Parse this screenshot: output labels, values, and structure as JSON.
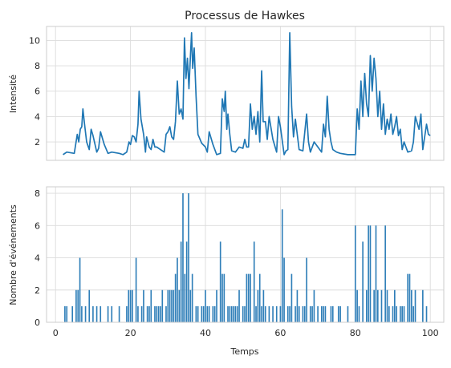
{
  "chart_data": [
    {
      "type": "line",
      "title": "Processus de Hawkes",
      "ylabel": "Intensité",
      "color": "#1f77b4",
      "grid": true,
      "xlim": [
        -2.4,
        103.6
      ],
      "ylim": [
        0.55,
        11.1
      ],
      "yticks": [
        2,
        4,
        6,
        8,
        10
      ],
      "x": [
        2,
        3,
        5,
        5.8,
        6.2,
        6.6,
        7,
        7.3,
        7.7,
        8.3,
        9,
        9.5,
        10,
        11,
        11.5,
        12,
        13,
        14,
        15,
        17,
        18,
        19,
        19.6,
        20,
        20.5,
        21,
        21.5,
        22,
        22.3,
        22.8,
        23.5,
        24,
        24.3,
        25,
        25.5,
        26,
        26.5,
        27,
        28,
        29,
        29.5,
        30,
        30.5,
        31,
        31.5,
        32,
        32.5,
        33,
        33.5,
        34,
        34.4,
        34.8,
        35.2,
        35.6,
        36,
        36.3,
        36.6,
        37,
        37.5,
        38,
        39,
        40,
        40.5,
        41,
        42,
        43,
        44,
        44.5,
        45,
        45.3,
        45.7,
        46,
        46.5,
        47,
        48,
        49,
        50,
        50.5,
        51,
        51.5,
        52,
        52.5,
        53,
        53.5,
        54,
        54.5,
        55,
        55.4,
        56,
        56.5,
        57,
        58,
        59,
        59.5,
        60,
        61,
        61.5,
        62,
        62.5,
        63,
        63.5,
        64,
        64.5,
        65,
        66,
        67,
        67.5,
        68,
        69,
        70,
        71,
        71.5,
        72,
        72.5,
        73,
        73.5,
        74,
        75,
        76,
        78,
        80,
        80.5,
        81,
        81.5,
        82,
        82.5,
        83,
        83.5,
        84,
        84.5,
        85,
        85.5,
        86,
        86.5,
        87,
        87.5,
        88,
        88.5,
        89,
        89.5,
        90,
        90.5,
        91,
        91.5,
        92,
        92.5,
        93,
        94,
        95,
        95.5,
        96,
        97,
        97.5,
        98,
        99,
        99.5,
        100
      ],
      "values": [
        1.0,
        1.2,
        1.1,
        2.6,
        2.0,
        3.0,
        3.2,
        4.6,
        3.5,
        2.0,
        1.4,
        3.0,
        2.5,
        1.2,
        1.5,
        2.8,
        1.8,
        1.1,
        1.2,
        1.1,
        1.0,
        1.2,
        2.0,
        1.8,
        2.5,
        2.4,
        2.0,
        3.4,
        6.0,
        3.8,
        2.6,
        1.2,
        2.4,
        1.6,
        1.4,
        2.2,
        1.6,
        1.6,
        1.4,
        1.2,
        2.6,
        2.8,
        3.2,
        2.4,
        2.2,
        3.6,
        6.8,
        4.2,
        4.6,
        3.8,
        10.2,
        7.0,
        8.6,
        6.2,
        8.8,
        10.6,
        7.8,
        9.4,
        5.6,
        2.6,
        1.9,
        1.6,
        1.2,
        2.8,
        1.8,
        1.0,
        1.1,
        5.4,
        4.4,
        6.0,
        3.0,
        4.2,
        2.6,
        1.3,
        1.2,
        1.6,
        1.5,
        2.2,
        1.6,
        1.6,
        5.0,
        3.0,
        4.0,
        2.6,
        4.4,
        2.0,
        7.6,
        3.6,
        3.6,
        2.2,
        4.0,
        2.2,
        1.2,
        4.0,
        3.2,
        1.0,
        1.3,
        1.4,
        10.6,
        4.8,
        2.4,
        3.8,
        2.6,
        1.4,
        1.3,
        4.2,
        2.0,
        1.2,
        2.0,
        1.6,
        1.2,
        3.4,
        2.4,
        5.6,
        3.0,
        2.0,
        1.4,
        1.2,
        1.1,
        1.0,
        1.0,
        4.6,
        3.0,
        6.8,
        4.0,
        7.4,
        5.0,
        4.0,
        8.8,
        6.0,
        8.6,
        7.0,
        4.0,
        6.0,
        3.0,
        5.0,
        2.6,
        3.8,
        3.0,
        4.2,
        2.6,
        3.2,
        4.0,
        2.5,
        3.0,
        1.4,
        2.0,
        1.2,
        1.3,
        2.0,
        4.0,
        3.0,
        4.2,
        1.4,
        3.4,
        2.6,
        2.5
      ]
    },
    {
      "type": "bar",
      "xlabel": "Temps",
      "ylabel": "Nombre d'événements",
      "color": "#2e7eb8",
      "grid": true,
      "xlim": [
        -2.4,
        103.6
      ],
      "ylim": [
        0,
        8.4
      ],
      "xticks": [
        0,
        20,
        40,
        60,
        80,
        100
      ],
      "yticks": [
        0,
        2,
        4,
        6,
        8
      ],
      "x": [
        2.5,
        3,
        4.5,
        5.5,
        6,
        6.5,
        7,
        8,
        9,
        10,
        11,
        12,
        14,
        15,
        17,
        19,
        19.5,
        20,
        20.5,
        21.5,
        22,
        23,
        23.5,
        24.5,
        25,
        25.5,
        26.5,
        27,
        27.5,
        28,
        28.5,
        29.5,
        30,
        30.5,
        31,
        31.5,
        32,
        32.5,
        33,
        33.5,
        34,
        34.5,
        35,
        35.5,
        36,
        36.5,
        37.5,
        38,
        39,
        39.5,
        40,
        40.5,
        41,
        42,
        42.5,
        43,
        44,
        44.5,
        45,
        46,
        46.5,
        47,
        47.5,
        48,
        48.5,
        49,
        50,
        50.5,
        51,
        51.5,
        52,
        53,
        53.5,
        54,
        54.5,
        55,
        55.5,
        56,
        57,
        58,
        59,
        60,
        60.5,
        61,
        62,
        62.5,
        63,
        64,
        64.5,
        65,
        66,
        66.5,
        67,
        68,
        68.5,
        69,
        70,
        71,
        71.5,
        72,
        73.5,
        74,
        75.5,
        76,
        78,
        80,
        80.5,
        81,
        82,
        83,
        83.5,
        84,
        85,
        85.5,
        86,
        87,
        88,
        88.5,
        89,
        90,
        90.5,
        91,
        92,
        92.5,
        93,
        94,
        94.5,
        95,
        95.5,
        96,
        98,
        99
      ],
      "values": [
        1,
        1,
        1,
        2,
        2,
        4,
        1,
        1,
        2,
        1,
        1,
        1,
        1,
        1,
        1,
        1,
        2,
        2,
        2,
        4,
        1,
        1,
        2,
        1,
        1,
        2,
        1,
        1,
        1,
        1,
        2,
        1,
        2,
        2,
        2,
        2,
        3,
        4,
        2,
        5,
        8,
        3,
        5,
        8,
        2,
        3,
        1,
        1,
        1,
        1,
        2,
        1,
        1,
        1,
        1,
        2,
        5,
        3,
        3,
        1,
        1,
        1,
        1,
        1,
        1,
        2,
        1,
        1,
        3,
        3,
        3,
        5,
        1,
        2,
        3,
        1,
        2,
        1,
        1,
        1,
        1,
        1,
        7,
        4,
        1,
        1,
        3,
        1,
        2,
        1,
        1,
        1,
        4,
        1,
        1,
        2,
        1,
        1,
        1,
        1,
        1,
        1,
        1,
        1,
        1,
        6,
        2,
        1,
        5,
        2,
        6,
        6,
        2,
        6,
        2,
        2,
        6,
        2,
        1,
        1,
        2,
        1,
        1,
        1,
        1,
        3,
        3,
        2,
        1,
        2,
        2,
        1
      ]
    }
  ]
}
